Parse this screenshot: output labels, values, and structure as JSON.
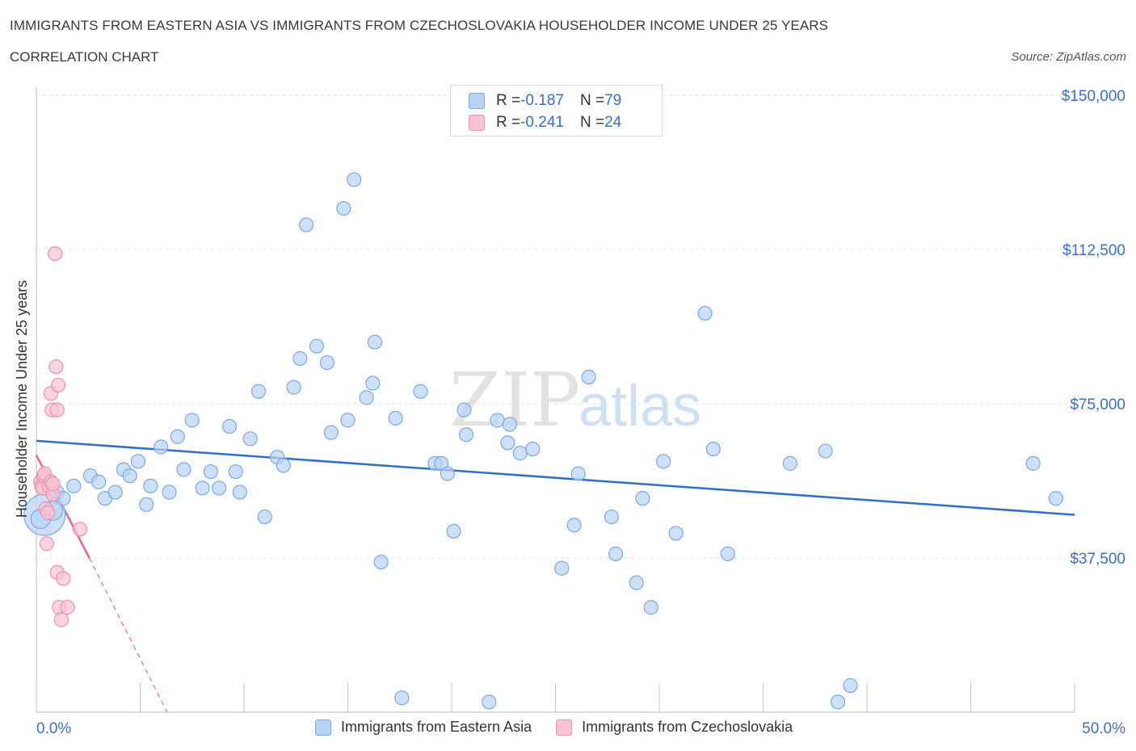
{
  "header": {
    "title": "IMMIGRANTS FROM EASTERN ASIA VS IMMIGRANTS FROM CZECHOSLOVAKIA HOUSEHOLDER INCOME UNDER 25 YEARS",
    "subtitle": "CORRELATION CHART",
    "source": "Source: ZipAtlas.com"
  },
  "stats_legend": {
    "rows": [
      {
        "r_label": "R = ",
        "r_value": "-0.187",
        "n_label": "N = ",
        "n_value": "79"
      },
      {
        "r_label": "R = ",
        "r_value": "-0.241",
        "n_label": "N = ",
        "n_value": "24"
      }
    ]
  },
  "watermark": {
    "zip": "ZIP",
    "atlas": "atlas"
  },
  "colors": {
    "blue_fill": "#b8d3f5",
    "blue_stroke": "#7aa9e2",
    "blue_line": "#2f6fc9",
    "pink_fill": "#f8c3d3",
    "pink_stroke": "#ee8fae",
    "pink_line": "#e8668f",
    "axis_label": "#3a6fc7",
    "grid": "#e3e3e3"
  },
  "chart_data": {
    "type": "scatter",
    "ylabel": "Householder Income Under 25 years",
    "xlim": [
      0,
      50
    ],
    "ylim": [
      0,
      150000
    ],
    "x_tick_labels": [
      "0.0%",
      "50.0%"
    ],
    "y_ticks": [
      37500,
      75000,
      112500,
      150000
    ],
    "y_tick_labels": [
      "$37,500",
      "$75,000",
      "$112,500",
      "$150,000"
    ],
    "grid": true,
    "legend": "bottom",
    "series": [
      {
        "name": "Immigrants from Eastern Asia",
        "color": "#7aa9e2",
        "points": [
          [
            0.4,
            48000,
            3
          ],
          [
            0.8,
            49000,
            1.4
          ],
          [
            1.0,
            53500,
            1
          ],
          [
            1.3,
            52000,
            1
          ],
          [
            1.8,
            55000,
            1
          ],
          [
            2.6,
            57500,
            1
          ],
          [
            3.0,
            56000,
            1
          ],
          [
            3.3,
            52000,
            1
          ],
          [
            3.8,
            53500,
            1
          ],
          [
            4.2,
            59000,
            1
          ],
          [
            4.5,
            57500,
            1
          ],
          [
            4.9,
            61000,
            1
          ],
          [
            5.3,
            50500,
            1
          ],
          [
            5.5,
            55000,
            1
          ],
          [
            6.0,
            64500,
            1
          ],
          [
            6.4,
            53500,
            1
          ],
          [
            6.8,
            67000,
            1
          ],
          [
            7.1,
            59000,
            1
          ],
          [
            7.5,
            71000,
            1
          ],
          [
            8.0,
            54500,
            1
          ],
          [
            8.4,
            58500,
            1
          ],
          [
            8.8,
            54500,
            1
          ],
          [
            9.3,
            69500,
            1
          ],
          [
            9.6,
            58500,
            1
          ],
          [
            9.8,
            53500,
            1
          ],
          [
            10.3,
            66500,
            1
          ],
          [
            10.7,
            78000,
            1
          ],
          [
            11.0,
            47500,
            1
          ],
          [
            11.6,
            62000,
            1
          ],
          [
            11.9,
            60000,
            1
          ],
          [
            12.4,
            79000,
            1
          ],
          [
            12.7,
            86000,
            1
          ],
          [
            13.0,
            118500,
            1
          ],
          [
            13.5,
            89000,
            1
          ],
          [
            14.0,
            85000,
            1
          ],
          [
            14.2,
            68000,
            1
          ],
          [
            14.8,
            122500,
            1
          ],
          [
            15.0,
            71000,
            1
          ],
          [
            15.3,
            129500,
            1
          ],
          [
            15.9,
            76500,
            1
          ],
          [
            16.2,
            80000,
            1
          ],
          [
            16.3,
            90000,
            1
          ],
          [
            16.6,
            36500,
            1
          ],
          [
            17.3,
            71500,
            1
          ],
          [
            17.6,
            3500,
            1
          ],
          [
            18.5,
            78000,
            1
          ],
          [
            19.2,
            60500,
            1
          ],
          [
            19.5,
            60500,
            1
          ],
          [
            19.8,
            58000,
            1
          ],
          [
            20.1,
            44000,
            1
          ],
          [
            20.6,
            73500,
            1
          ],
          [
            20.7,
            67500,
            1
          ],
          [
            21.8,
            2500,
            1
          ],
          [
            22.2,
            71000,
            1
          ],
          [
            22.7,
            65500,
            1
          ],
          [
            22.8,
            70000,
            1
          ],
          [
            23.3,
            63000,
            1
          ],
          [
            23.9,
            64000,
            1
          ],
          [
            25.3,
            35000,
            1
          ],
          [
            25.9,
            45500,
            1
          ],
          [
            26.1,
            58000,
            1
          ],
          [
            26.6,
            81500,
            1
          ],
          [
            27.7,
            47500,
            1
          ],
          [
            27.9,
            38500,
            1
          ],
          [
            28.9,
            31500,
            1
          ],
          [
            29.2,
            52000,
            1
          ],
          [
            29.6,
            25500,
            1
          ],
          [
            30.2,
            61000,
            1
          ],
          [
            30.8,
            43500,
            1
          ],
          [
            32.2,
            97000,
            1
          ],
          [
            32.6,
            64000,
            1
          ],
          [
            33.3,
            38500,
            1
          ],
          [
            36.3,
            60500,
            1
          ],
          [
            38.0,
            63500,
            1
          ],
          [
            38.6,
            2500,
            1
          ],
          [
            39.2,
            6500,
            1
          ],
          [
            48.0,
            60500,
            1
          ],
          [
            49.1,
            52000,
            1
          ],
          [
            0.2,
            47000,
            1.4
          ]
        ]
      },
      {
        "name": "Immigrants from Czechoslovakia",
        "color": "#ee8fae",
        "points": [
          [
            0.2,
            56000,
            1
          ],
          [
            0.25,
            55000,
            1
          ],
          [
            0.3,
            54500,
            1
          ],
          [
            0.35,
            57500,
            1
          ],
          [
            0.4,
            58000,
            1
          ],
          [
            0.45,
            49500,
            1
          ],
          [
            0.5,
            41000,
            1
          ],
          [
            0.6,
            55000,
            1
          ],
          [
            0.7,
            56000,
            1
          ],
          [
            0.7,
            77500,
            1
          ],
          [
            0.75,
            73500,
            1
          ],
          [
            0.8,
            53000,
            1
          ],
          [
            0.8,
            55500,
            1
          ],
          [
            0.9,
            111500,
            1
          ],
          [
            0.95,
            84000,
            1
          ],
          [
            1.0,
            73500,
            1
          ],
          [
            1.0,
            34000,
            1
          ],
          [
            1.05,
            79500,
            1
          ],
          [
            1.1,
            25500,
            1
          ],
          [
            1.2,
            22500,
            1
          ],
          [
            1.3,
            32500,
            1
          ],
          [
            1.5,
            25500,
            1
          ],
          [
            2.1,
            44500,
            1
          ],
          [
            0.55,
            48500,
            1
          ]
        ]
      }
    ],
    "trend_lines": [
      {
        "series": "Immigrants from Eastern Asia",
        "x": [
          0,
          50
        ],
        "y": [
          66000,
          48000
        ]
      },
      {
        "series": "Immigrants from Czechoslovakia",
        "solid_x": [
          0,
          2.55
        ],
        "solid_y": [
          62500,
          37500
        ],
        "dashed_x": [
          2.55,
          6.3
        ],
        "dashed_y": [
          37500,
          0
        ]
      }
    ]
  },
  "bottom_legend": {
    "items": [
      "Immigrants from Eastern Asia",
      "Immigrants from Czechoslovakia"
    ]
  }
}
